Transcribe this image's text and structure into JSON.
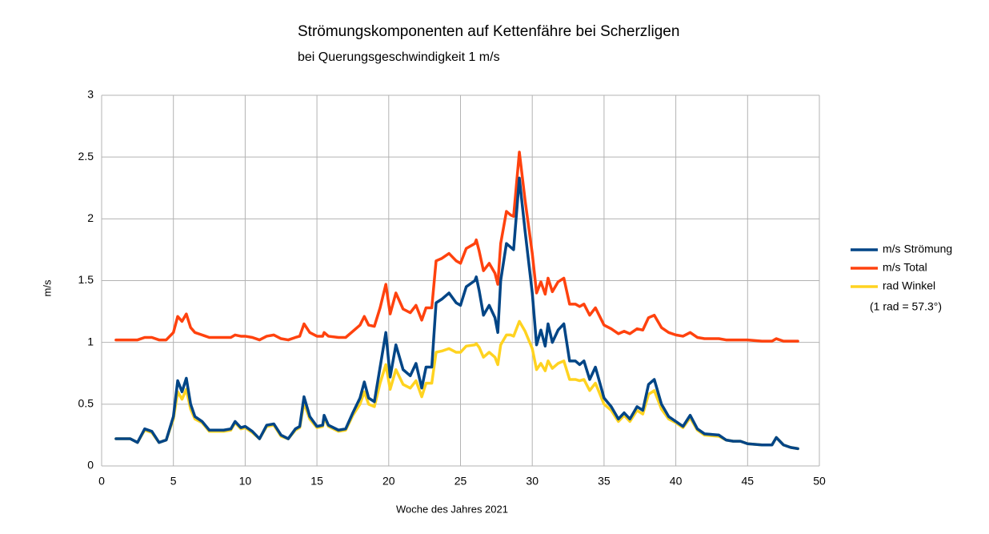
{
  "chart_data": {
    "type": "line",
    "title": "Strömungskomponenten auf Kettenfähre bei Scherzligen",
    "subtitle": "bei Querungsgeschwindigkeit 1 m/s",
    "xlabel": "Woche des Jahres 2021",
    "ylabel": "m/s",
    "annotation": "(1 rad = 57.3°)",
    "grid": true,
    "legend": "right",
    "xlim": [
      0,
      50
    ],
    "xticks": [
      0,
      5,
      10,
      15,
      20,
      25,
      30,
      35,
      40,
      45,
      50
    ],
    "ylim": [
      0,
      3
    ],
    "yticks": [
      0,
      0.5,
      1,
      1.5,
      2,
      2.5,
      3
    ],
    "x": [
      1,
      1.5,
      2,
      2.5,
      3,
      3.5,
      4,
      4.5,
      5,
      5.3,
      5.6,
      5.9,
      6.2,
      6.5,
      7,
      7.5,
      8,
      8.5,
      9,
      9.3,
      9.7,
      10,
      10.5,
      11,
      11.5,
      12,
      12.5,
      13,
      13.5,
      13.8,
      14.1,
      14.5,
      15,
      15.4,
      15.5,
      15.8,
      16.5,
      17,
      17.5,
      18,
      18.3,
      18.6,
      19,
      19.4,
      19.8,
      20.1,
      20.5,
      21,
      21.5,
      21.9,
      22.3,
      22.6,
      23,
      23.3,
      23.7,
      24.2,
      24.7,
      25,
      25.4,
      26,
      26.1,
      26.3,
      26.6,
      27,
      27.4,
      27.6,
      27.8,
      28.2,
      28.5,
      28.7,
      29.1,
      29.5,
      30,
      30.3,
      30.6,
      30.9,
      31.1,
      31.4,
      31.8,
      32.2,
      32.6,
      33,
      33.3,
      33.6,
      34,
      34.4,
      35,
      35.5,
      36,
      36.4,
      36.8,
      37.3,
      37.7,
      38.1,
      38.5,
      39,
      39.5,
      40,
      40.5,
      41,
      41.5,
      42,
      43,
      43.5,
      44,
      44.5,
      45,
      46,
      46.7,
      47,
      47.5,
      48,
      48.5
    ],
    "series": [
      {
        "name": "m/s Strömung",
        "color": "#004586",
        "values": [
          0.22,
          0.22,
          0.22,
          0.19,
          0.3,
          0.28,
          0.19,
          0.21,
          0.4,
          0.69,
          0.6,
          0.71,
          0.5,
          0.4,
          0.36,
          0.29,
          0.29,
          0.29,
          0.3,
          0.36,
          0.31,
          0.32,
          0.28,
          0.22,
          0.33,
          0.34,
          0.25,
          0.22,
          0.3,
          0.32,
          0.56,
          0.4,
          0.32,
          0.33,
          0.41,
          0.33,
          0.29,
          0.3,
          0.43,
          0.55,
          0.68,
          0.55,
          0.52,
          0.8,
          1.08,
          0.72,
          0.98,
          0.78,
          0.73,
          0.83,
          0.63,
          0.8,
          0.8,
          1.32,
          1.35,
          1.4,
          1.32,
          1.3,
          1.45,
          1.5,
          1.53,
          1.42,
          1.22,
          1.3,
          1.2,
          1.08,
          1.5,
          1.8,
          1.77,
          1.75,
          2.33,
          1.9,
          1.4,
          0.98,
          1.1,
          0.97,
          1.15,
          1.0,
          1.1,
          1.15,
          0.85,
          0.85,
          0.82,
          0.85,
          0.7,
          0.8,
          0.55,
          0.48,
          0.38,
          0.43,
          0.38,
          0.48,
          0.45,
          0.66,
          0.7,
          0.5,
          0.4,
          0.36,
          0.32,
          0.41,
          0.3,
          0.26,
          0.25,
          0.21,
          0.2,
          0.2,
          0.18,
          0.17,
          0.17,
          0.23,
          0.17,
          0.15,
          0.14
        ]
      },
      {
        "name": "m/s Total",
        "color": "#ff420e",
        "values": [
          1.02,
          1.02,
          1.02,
          1.02,
          1.04,
          1.04,
          1.02,
          1.02,
          1.08,
          1.21,
          1.17,
          1.23,
          1.12,
          1.08,
          1.06,
          1.04,
          1.04,
          1.04,
          1.04,
          1.06,
          1.05,
          1.05,
          1.04,
          1.02,
          1.05,
          1.06,
          1.03,
          1.02,
          1.04,
          1.05,
          1.15,
          1.08,
          1.05,
          1.05,
          1.08,
          1.05,
          1.04,
          1.04,
          1.09,
          1.14,
          1.21,
          1.14,
          1.13,
          1.28,
          1.47,
          1.23,
          1.4,
          1.27,
          1.24,
          1.3,
          1.18,
          1.28,
          1.28,
          1.66,
          1.68,
          1.72,
          1.66,
          1.64,
          1.76,
          1.8,
          1.83,
          1.74,
          1.58,
          1.64,
          1.56,
          1.47,
          1.8,
          2.06,
          2.03,
          2.02,
          2.54,
          2.15,
          1.72,
          1.4,
          1.49,
          1.39,
          1.52,
          1.41,
          1.49,
          1.52,
          1.31,
          1.31,
          1.29,
          1.31,
          1.22,
          1.28,
          1.14,
          1.11,
          1.07,
          1.09,
          1.07,
          1.11,
          1.1,
          1.2,
          1.22,
          1.12,
          1.08,
          1.06,
          1.05,
          1.08,
          1.04,
          1.03,
          1.03,
          1.02,
          1.02,
          1.02,
          1.02,
          1.01,
          1.01,
          1.03,
          1.01,
          1.01,
          1.01
        ]
      },
      {
        "name": "rad Winkel",
        "color": "#ffd320",
        "values": [
          0.22,
          0.22,
          0.22,
          0.19,
          0.29,
          0.27,
          0.19,
          0.21,
          0.38,
          0.6,
          0.54,
          0.62,
          0.46,
          0.38,
          0.35,
          0.28,
          0.28,
          0.28,
          0.29,
          0.35,
          0.3,
          0.31,
          0.27,
          0.22,
          0.32,
          0.33,
          0.24,
          0.22,
          0.29,
          0.31,
          0.51,
          0.38,
          0.31,
          0.32,
          0.39,
          0.32,
          0.28,
          0.29,
          0.41,
          0.5,
          0.6,
          0.5,
          0.48,
          0.67,
          0.82,
          0.62,
          0.78,
          0.66,
          0.63,
          0.69,
          0.56,
          0.67,
          0.67,
          0.92,
          0.93,
          0.95,
          0.92,
          0.92,
          0.97,
          0.98,
          0.99,
          0.96,
          0.88,
          0.92,
          0.88,
          0.82,
          0.98,
          1.06,
          1.06,
          1.05,
          1.17,
          1.09,
          0.95,
          0.78,
          0.83,
          0.77,
          0.85,
          0.79,
          0.83,
          0.85,
          0.7,
          0.7,
          0.69,
          0.7,
          0.61,
          0.67,
          0.5,
          0.45,
          0.36,
          0.41,
          0.36,
          0.45,
          0.42,
          0.58,
          0.61,
          0.46,
          0.38,
          0.35,
          0.31,
          0.39,
          0.29,
          0.25,
          0.24,
          0.21,
          0.2,
          0.2,
          0.18,
          0.17,
          0.17,
          0.23,
          0.17,
          0.15,
          0.14
        ]
      }
    ]
  }
}
